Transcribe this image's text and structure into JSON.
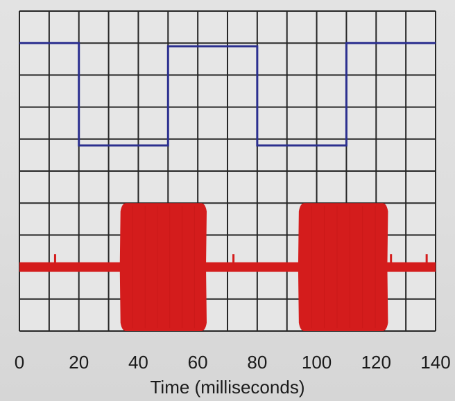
{
  "chart_data": {
    "type": "line",
    "xlabel": "Time (milliseconds)",
    "ylabel": "",
    "xlim": [
      0,
      140
    ],
    "x_ticks": [
      0,
      20,
      40,
      60,
      80,
      100,
      120,
      140
    ],
    "ylim": [
      0,
      10
    ],
    "grid": true,
    "grid_divisions": {
      "x": 14,
      "y": 10
    },
    "series": [
      {
        "kind": "square-wave",
        "color": "#2b2f8f",
        "points": [
          [
            0,
            9.0
          ],
          [
            20,
            9.0
          ],
          [
            20,
            5.8
          ],
          [
            50,
            5.8
          ],
          [
            50,
            8.9
          ],
          [
            80,
            8.9
          ],
          [
            80,
            5.8
          ],
          [
            110,
            5.8
          ],
          [
            110,
            9.0
          ],
          [
            140,
            9.0
          ]
        ]
      },
      {
        "kind": "modulated-signal",
        "color": "#d41c1c",
        "baseline": 2.0,
        "baseline_band": [
          1.85,
          2.15
        ],
        "spikes": [
          12,
          72,
          125,
          137
        ],
        "spike_top": 2.4,
        "bursts": [
          {
            "start": 34,
            "end": 63,
            "top": 4.0,
            "bottom": 0.0
          },
          {
            "start": 94,
            "end": 124,
            "top": 4.0,
            "bottom": 0.0
          }
        ]
      }
    ]
  }
}
